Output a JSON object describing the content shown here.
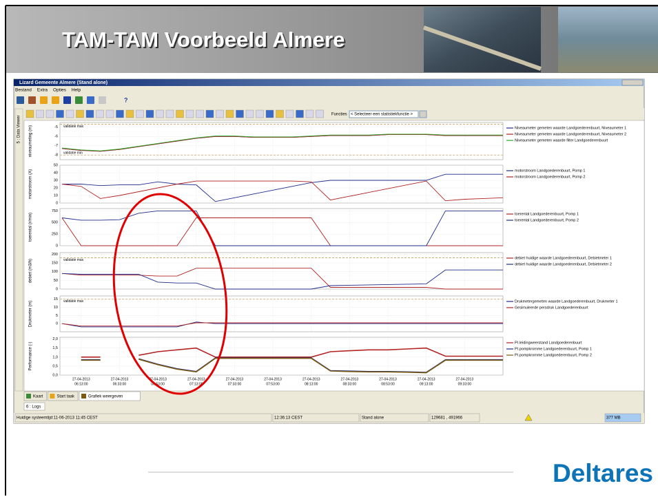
{
  "slide": {
    "title": "TAM-TAM  Voorbeeld Almere",
    "logo": "Deltares"
  },
  "window": {
    "title": "Lizard Gemeente Almere  (Stand alone)",
    "menu": [
      "Bestand",
      "Extra",
      "Opties",
      "Help"
    ],
    "help_icon": "?",
    "functions_label": "Functies",
    "functions_select": "< Selecteer een statistiekfunctie >",
    "side_tab": "5 : Data Viewer"
  },
  "time_axis": {
    "ticks": [
      {
        "date": "27-04-2013",
        "time": "06:13:00"
      },
      {
        "date": "27-04-2013",
        "time": "06:33:00"
      },
      {
        "date": "27-04-2013",
        "time": "06:53:00"
      },
      {
        "date": "27-04-2013",
        "time": "07:13:00"
      },
      {
        "date": "27-04-2013",
        "time": "07:33:00"
      },
      {
        "date": "27-04-2013",
        "time": "07:53:00"
      },
      {
        "date": "27-04-2013",
        "time": "08:13:00"
      },
      {
        "date": "27-04-2013",
        "time": "08:33:00"
      },
      {
        "date": "27-04-2013",
        "time": "08:53:00"
      },
      {
        "date": "27-04-2013",
        "time": "09:13:00"
      },
      {
        "date": "27-04-2013",
        "time": "09:33:00"
      }
    ]
  },
  "panels": [
    {
      "ylabel": "niveaumeting (m)",
      "ylim": [
        -8.5,
        -4.5
      ],
      "yticks": [
        -5,
        -6,
        -7,
        -8
      ],
      "validation": [
        {
          "label": "validatie max",
          "value": -4.7
        },
        {
          "label": "validatie min",
          "value": -8.0
        }
      ],
      "series": [
        {
          "name": "Niveaumeter gemeten waarde Landgoederenbuurt, Niveaumeter 1",
          "color": "#1f2a8c",
          "values": [
            -7.3,
            -7.5,
            -7.6,
            -7.4,
            -7.1,
            -6.8,
            -6.5,
            -6.2,
            -6.0,
            -6.0,
            -6.1,
            -6.1,
            -6.1,
            -6.0,
            -5.9,
            -5.9,
            -5.9,
            -5.8,
            -5.8,
            -5.8,
            -5.9,
            -5.9,
            -5.9,
            -5.9
          ]
        },
        {
          "name": "Niveaumeter gemeten waarde Landgoederenbuurt, Niveaumeter 2",
          "color": "#b22222",
          "values": [
            -7.3,
            -7.5,
            -7.6,
            -7.4,
            -7.1,
            -6.8,
            -6.5,
            -6.2,
            -6.0,
            -6.0,
            -6.1,
            -6.1,
            -6.1,
            -6.0,
            -5.9,
            -5.9,
            -5.9,
            -5.8,
            -5.8,
            -5.8,
            -5.9,
            -5.9,
            -5.9,
            -5.9
          ]
        },
        {
          "name": "Niveaumeter gemeten waarde filter Landgoederenbuurt",
          "color": "#22aa22",
          "values": [
            -7.25,
            -7.45,
            -7.55,
            -7.35,
            -7.05,
            -6.75,
            -6.45,
            -6.15,
            -5.95,
            -5.95,
            -6.05,
            -6.05,
            -6.05,
            -5.95,
            -5.85,
            -5.85,
            -5.85,
            -5.75,
            -5.75,
            -5.75,
            -5.85,
            -5.85,
            -5.85,
            -5.85
          ]
        }
      ]
    },
    {
      "ylabel": "motorstroom (A)",
      "ylim": [
        0,
        50
      ],
      "yticks": [
        0,
        10,
        20,
        30,
        40,
        50
      ],
      "validation": [],
      "series": [
        {
          "name": "motorstroom Landgoederenbuurt, Pomp 1",
          "color": "#1f2a8c",
          "values": [
            25,
            25,
            23,
            24,
            24,
            28,
            25,
            24,
            2,
            7,
            12,
            17,
            22,
            27,
            30,
            30,
            30,
            30,
            30,
            30,
            38,
            38,
            38,
            38
          ]
        },
        {
          "name": "motorstroom Landgoederenbuurt, Pomp 2",
          "color": "#b22222",
          "values": [
            25,
            22,
            6,
            10,
            15,
            20,
            25,
            29,
            29,
            29,
            29,
            29,
            29,
            28,
            4,
            9,
            14,
            19,
            24,
            29,
            3,
            5,
            6,
            7
          ]
        }
      ]
    },
    {
      "ylabel": "toerental (r/min)",
      "ylim": [
        0,
        800
      ],
      "yticks": [
        0,
        250,
        500,
        750
      ],
      "validation": [],
      "series": [
        {
          "name": "toerental Landgoederenbuurt, Pomp 1",
          "color": "#b22222",
          "values": [
            600,
            0,
            0,
            0,
            0,
            0,
            0,
            600,
            600,
            600,
            600,
            600,
            600,
            600,
            0,
            0,
            0,
            0,
            0,
            0,
            0,
            0,
            0,
            0
          ]
        },
        {
          "name": "toerental Landgoederenbuurt, Pomp 2",
          "color": "#1f2a8c",
          "values": [
            600,
            550,
            550,
            560,
            700,
            750,
            750,
            750,
            0,
            0,
            0,
            0,
            0,
            0,
            0,
            0,
            0,
            0,
            0,
            0,
            750,
            750,
            750,
            750
          ]
        }
      ]
    },
    {
      "ylabel": "debiet (m3/h)",
      "ylim": [
        0,
        210
      ],
      "yticks": [
        0,
        50,
        100,
        150,
        200
      ],
      "validation": [
        {
          "label": "validatie max",
          "value": 180
        }
      ],
      "series": [
        {
          "name": "debiet huidige waarde Landgoederenbuurt, Debietmeter 1",
          "color": "#b22222",
          "values": [
            90,
            80,
            80,
            80,
            80,
            75,
            75,
            120,
            120,
            120,
            120,
            120,
            120,
            120,
            10,
            10,
            10,
            10,
            10,
            10,
            0,
            0,
            0,
            0
          ]
        },
        {
          "name": "debiet huidige waarde Landgoederenbuurt, Debietmeter 2",
          "color": "#1f2a8c",
          "values": [
            90,
            85,
            85,
            85,
            85,
            40,
            35,
            35,
            0,
            0,
            0,
            0,
            0,
            0,
            20,
            22,
            24,
            26,
            28,
            30,
            110,
            110,
            110,
            110
          ]
        }
      ]
    },
    {
      "ylabel": "Drukmeter (m)",
      "ylim": [
        -5,
        17
      ],
      "yticks": [
        0,
        5,
        10,
        15
      ],
      "validation": [
        {
          "label": "validatie max",
          "value": 15
        }
      ],
      "series": [
        {
          "name": "Drukmetergemeten waarde Landgoederenbuurt, Drukmeter 1",
          "color": "#1f2a8c",
          "values": [
            0,
            -2,
            -2,
            -2,
            -2,
            -2,
            -2,
            1,
            0,
            0,
            0,
            0,
            0,
            0,
            0,
            0,
            0,
            0,
            0,
            0,
            0,
            0,
            0,
            0
          ]
        },
        {
          "name": "Gesimuleerde persdruk Landgoederenbuurt",
          "color": "#b22222",
          "values": [
            0,
            -1.5,
            -1.5,
            -1.5,
            -1.5,
            -1.5,
            -1.5,
            0.5,
            0.5,
            0.5,
            0.5,
            0.5,
            0.5,
            0.5,
            0.5,
            0.5,
            0.5,
            0.5,
            0.5,
            0.5,
            0.5,
            0.5,
            0.5,
            0.5
          ]
        }
      ]
    },
    {
      "ylabel": "Performance (-)",
      "ylim": [
        0,
        2.1
      ],
      "yticks": [
        {
          "value": 0,
          "label": "0,0"
        },
        {
          "value": 0.5,
          "label": "0,5"
        },
        {
          "value": 1,
          "label": "1,0"
        },
        {
          "value": 1.5,
          "label": "1,5"
        },
        {
          "value": 2,
          "label": "2,0"
        }
      ],
      "validation": [],
      "series": [
        {
          "name": "PI.leidingweerstand Landgoederenbuurt",
          "color": "#b22222",
          "values": [
            null,
            1.0,
            1.0,
            null,
            1.1,
            1.3,
            1.4,
            1.5,
            1.0,
            1.0,
            1.0,
            1.0,
            1.0,
            1.0,
            1.3,
            1.35,
            1.4,
            1.4,
            1.45,
            1.5,
            1.05,
            1.05,
            1.05,
            1.05
          ]
        },
        {
          "name": "PI.pompkromme Landgoederenbuurt, Pomp 1",
          "color": "#1f2a8c",
          "values": [
            null,
            0.85,
            0.85,
            null,
            0.9,
            0.6,
            0.35,
            0.2,
            0.95,
            0.95,
            0.95,
            0.95,
            0.95,
            0.95,
            0.25,
            0.22,
            0.2,
            0.2,
            0.18,
            0.15,
            0.85,
            0.85,
            0.85,
            0.85
          ]
        },
        {
          "name": "PI.pompkromme Landgoederenbuurt, Pomp 2",
          "color": "#7a5a10",
          "values": [
            null,
            0.83,
            0.83,
            null,
            0.88,
            0.58,
            0.33,
            0.18,
            0.93,
            0.93,
            0.93,
            0.93,
            0.93,
            0.93,
            0.23,
            0.2,
            0.18,
            0.18,
            0.16,
            0.13,
            0.83,
            0.83,
            0.83,
            0.83
          ]
        }
      ]
    }
  ],
  "tabs": [
    "Kaart",
    "Start taak",
    "Grafiek weergeven"
  ],
  "logs_tab": "6 : Logs",
  "status": [
    "Huidige systeemtijd:11-06-2013 11:45 CEST",
    "12:36:13 CEST",
    "Stand alone",
    "129681 , 491966",
    "377 MB"
  ]
}
